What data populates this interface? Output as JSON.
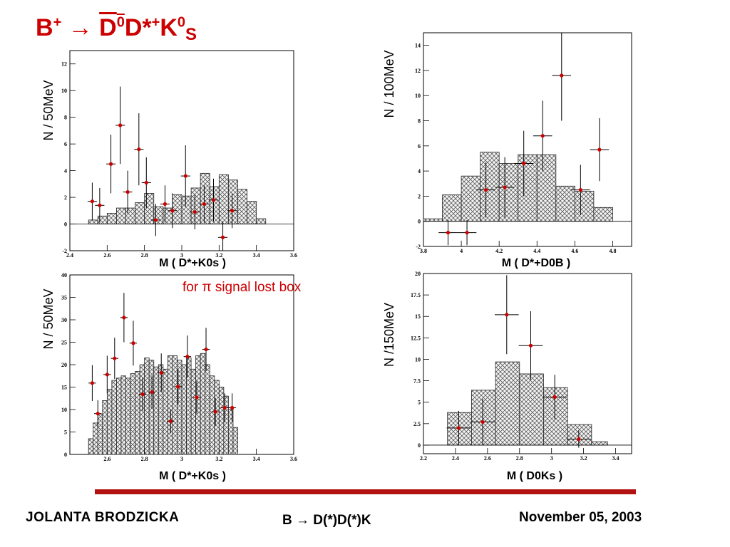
{
  "slide": {
    "title_parts": [
      "B",
      "+",
      " → ",
      "D",
      "0",
      "D*",
      "+",
      "K",
      "0",
      "S"
    ],
    "annotation": "for π signal lost box"
  },
  "footer": {
    "author": "JOLANTA  BRODZICKA",
    "topic": "B → D(*)D(*)K",
    "date": "November 05, 2003"
  },
  "colors": {
    "title": "#cc0000",
    "points": "#cc0000",
    "divider": "#b21212",
    "hatch": "#555555"
  },
  "chart_data": [
    {
      "type": "bar",
      "xlabel": "M ( D*+K0s )",
      "ylabel": "N / 50MeV",
      "xlim": [
        2.4,
        3.6
      ],
      "ylim": [
        -2,
        13
      ],
      "xticks": [
        2.4,
        2.6,
        2.8,
        3.0,
        3.2,
        3.4,
        3.6
      ],
      "xtick_labels": [
        "2.4",
        "2.6",
        "2.8",
        "3",
        "3.2",
        "3.4",
        "3.6"
      ],
      "yticks": [
        -2,
        0,
        2,
        4,
        6,
        8,
        10,
        12
      ],
      "ytick_labels": [
        "-2",
        "0",
        "2",
        "4",
        "6",
        "8",
        "10",
        "12"
      ],
      "histogram": {
        "bin_edges": [
          2.5,
          2.55,
          2.6,
          2.65,
          2.7,
          2.75,
          2.8,
          2.85,
          2.9,
          2.95,
          3.0,
          3.05,
          3.1,
          3.15,
          3.2,
          3.25,
          3.3,
          3.35,
          3.4,
          3.45
        ],
        "values": [
          0.3,
          0.6,
          0.8,
          1.2,
          1.2,
          1.6,
          2.3,
          1.3,
          1.2,
          2.2,
          2.1,
          2.7,
          3.8,
          2.8,
          3.7,
          3.3,
          2.6,
          1.7,
          0.4
        ]
      },
      "points": {
        "x": [
          2.52,
          2.56,
          2.62,
          2.67,
          2.71,
          2.77,
          2.81,
          2.86,
          2.91,
          2.95,
          3.02,
          3.07,
          3.12,
          3.17,
          3.22,
          3.27
        ],
        "y": [
          1.7,
          1.4,
          4.5,
          7.4,
          2.4,
          5.6,
          3.1,
          0.3,
          1.5,
          1.0,
          3.6,
          0.9,
          1.5,
          1.8,
          -1.0,
          1.0
        ],
        "yerr": [
          1.4,
          1.3,
          2.2,
          2.9,
          1.6,
          2.7,
          1.9,
          1.2,
          1.4,
          1.3,
          2.3,
          1.3,
          1.4,
          1.6,
          1.2,
          1.3
        ],
        "xerr": 0.025
      }
    },
    {
      "type": "bar",
      "xlabel": "M ( D*+D0B )",
      "ylabel": "N / 100MeV",
      "xlim": [
        3.8,
        4.9
      ],
      "ylim": [
        -2,
        15
      ],
      "xticks": [
        3.8,
        4.0,
        4.2,
        4.4,
        4.6,
        4.8
      ],
      "xtick_labels": [
        "3.8",
        "4",
        "4.2",
        "4.4",
        "4.6",
        "4.8"
      ],
      "yticks": [
        -2,
        0,
        2,
        4,
        6,
        8,
        10,
        12,
        14
      ],
      "ytick_labels": [
        "-2",
        "0",
        "2",
        "4",
        "6",
        "8",
        "10",
        "12",
        "14"
      ],
      "histogram": {
        "bin_edges": [
          3.8,
          3.9,
          4.0,
          4.1,
          4.2,
          4.3,
          4.4,
          4.5,
          4.6,
          4.7,
          4.8
        ],
        "values": [
          0.2,
          2.1,
          3.6,
          5.5,
          4.6,
          5.3,
          5.3,
          2.8,
          2.4,
          1.1
        ]
      },
      "points": {
        "x": [
          3.93,
          4.03,
          4.13,
          4.23,
          4.33,
          4.43,
          4.53,
          4.63,
          4.73
        ],
        "y": [
          -0.9,
          -0.9,
          2.5,
          2.7,
          4.6,
          6.8,
          11.6,
          2.5,
          5.7
        ],
        "yerr": [
          1.0,
          1.0,
          2.2,
          2.4,
          2.6,
          2.8,
          3.6,
          2.0,
          2.5
        ],
        "xerr": 0.05
      }
    },
    {
      "type": "bar",
      "xlabel": "M ( D*+K0s )",
      "ylabel": "N / 50MeV",
      "xlim": [
        2.4,
        3.6
      ],
      "ylim": [
        0,
        40
      ],
      "xticks": [
        2.6,
        2.8,
        3.0,
        3.2,
        3.4,
        3.6
      ],
      "xtick_labels": [
        "2.6",
        "2.8",
        "3",
        "3.2",
        "3.4",
        "3.6"
      ],
      "yticks": [
        0,
        5,
        10,
        15,
        20,
        25,
        30,
        35,
        40
      ],
      "ytick_labels": [
        "0",
        "5",
        "10",
        "15",
        "20",
        "25",
        "30",
        "35",
        "40"
      ],
      "histogram": {
        "bin_edges": [
          2.5,
          2.525,
          2.55,
          2.575,
          2.6,
          2.625,
          2.65,
          2.675,
          2.7,
          2.725,
          2.75,
          2.775,
          2.8,
          2.825,
          2.85,
          2.875,
          2.9,
          2.925,
          2.95,
          2.975,
          3.0,
          3.025,
          3.05,
          3.075,
          3.1,
          3.125,
          3.15,
          3.175,
          3.2,
          3.225,
          3.25,
          3.275,
          3.3
        ],
        "values": [
          3.5,
          7.0,
          9.0,
          12.0,
          14.5,
          16.5,
          17.0,
          17.5,
          17.0,
          18.0,
          18.5,
          20.0,
          21.5,
          21.0,
          19.5,
          20.0,
          19.0,
          22.0,
          22.0,
          21.0,
          20.0,
          21.5,
          19.0,
          22.0,
          22.5,
          20.0,
          17.5,
          16.5,
          15.0,
          13.0,
          10.0,
          6.0
        ]
      },
      "points": {
        "x": [
          2.52,
          2.55,
          2.6,
          2.64,
          2.69,
          2.74,
          2.79,
          2.84,
          2.89,
          2.94,
          2.98,
          3.03,
          3.08,
          3.13,
          3.18,
          3.23,
          3.27
        ],
        "y": [
          15.9,
          9.1,
          17.8,
          21.4,
          30.5,
          24.8,
          13.4,
          13.9,
          18.2,
          7.4,
          15.1,
          21.8,
          12.7,
          23.4,
          9.5,
          10.4,
          10.4
        ],
        "yerr": [
          4.0,
          3.0,
          4.2,
          4.6,
          5.5,
          5.0,
          3.7,
          3.7,
          4.3,
          2.7,
          3.9,
          4.7,
          3.6,
          4.8,
          3.1,
          3.2,
          3.2
        ],
        "xerr": 0.02
      }
    },
    {
      "type": "bar",
      "xlabel": "M ( D0Ks )",
      "ylabel": "N /150MeV",
      "xlim": [
        2.2,
        3.5
      ],
      "ylim": [
        -1,
        20
      ],
      "xticks": [
        2.2,
        2.4,
        2.6,
        2.8,
        3.0,
        3.2,
        3.4
      ],
      "xtick_labels": [
        "2.2",
        "2.4",
        "2.6",
        "2.8",
        "3",
        "3.2",
        "3.4"
      ],
      "yticks": [
        0,
        2.5,
        5,
        7.5,
        10,
        12.5,
        15,
        17.5,
        20
      ],
      "ytick_labels": [
        "0",
        "2.5",
        "5",
        "7.5",
        "10",
        "12.5",
        "15",
        "17.5",
        "20"
      ],
      "histogram": {
        "bin_edges": [
          2.35,
          2.5,
          2.65,
          2.8,
          2.95,
          3.1,
          3.25,
          3.35
        ],
        "values": [
          3.8,
          6.4,
          9.7,
          8.3,
          6.7,
          2.4,
          0.4
        ]
      },
      "points": {
        "x": [
          2.42,
          2.57,
          2.72,
          2.87,
          3.02,
          3.17
        ],
        "y": [
          2.0,
          2.7,
          15.2,
          11.6,
          5.6,
          0.7
        ],
        "yerr": [
          2.0,
          2.7,
          4.6,
          4.0,
          2.6,
          1.0
        ],
        "xerr": 0.075
      }
    }
  ]
}
